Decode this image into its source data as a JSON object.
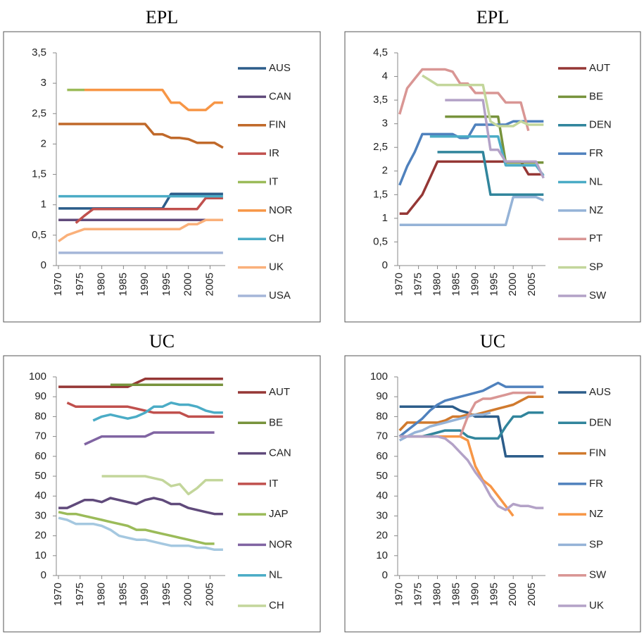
{
  "chart_data": [
    {
      "type": "line",
      "title": "EPL",
      "x": [
        1970,
        1972,
        1974,
        1976,
        1978,
        1980,
        1982,
        1984,
        1986,
        1988,
        1990,
        1992,
        1994,
        1996,
        1998,
        2000,
        2002,
        2004,
        2006,
        2008
      ],
      "xlim": [
        1969.5,
        2008.5
      ],
      "xticks": [
        1970,
        1975,
        1980,
        1985,
        1990,
        1995,
        2000,
        2005
      ],
      "ylim": [
        0,
        3.5
      ],
      "yticks": [
        0,
        {
          "value": 0.5,
          "label": "0,5"
        },
        1,
        {
          "value": 1.5,
          "label": "1,5"
        },
        2,
        {
          "value": 2.5,
          "label": "2,5"
        },
        3,
        {
          "value": 3.5,
          "label": "3,5"
        }
      ],
      "series": [
        {
          "name": "AUS",
          "color": "#2c5d8a",
          "values": [
            0.94,
            0.94,
            0.94,
            0.94,
            0.94,
            0.94,
            0.94,
            0.94,
            0.94,
            0.94,
            0.94,
            0.94,
            0.94,
            1.18,
            1.18,
            1.18,
            1.18,
            1.18,
            1.18,
            1.18
          ]
        },
        {
          "name": "CAN",
          "color": "#604a7b",
          "values": [
            0.75,
            0.75,
            0.75,
            0.75,
            0.75,
            0.75,
            0.75,
            0.75,
            0.75,
            0.75,
            0.75,
            0.75,
            0.75,
            0.75,
            0.75,
            0.75,
            0.75,
            0.75,
            0.75,
            0.75
          ]
        },
        {
          "name": "FIN",
          "color": "#c0692a",
          "values": [
            2.33,
            2.33,
            2.33,
            2.33,
            2.33,
            2.33,
            2.33,
            2.33,
            2.33,
            2.33,
            2.33,
            2.16,
            2.16,
            2.1,
            2.1,
            2.08,
            2.02,
            2.02,
            2.02,
            1.94
          ]
        },
        {
          "name": "IR",
          "color": "#c0504d",
          "values": [
            null,
            null,
            0.7,
            0.82,
            0.93,
            0.93,
            0.93,
            0.93,
            0.93,
            0.93,
            0.93,
            0.93,
            0.93,
            0.93,
            0.93,
            0.93,
            0.93,
            1.11,
            1.11,
            1.11
          ]
        },
        {
          "name": "IT",
          "color": "#9bbb59",
          "values": [
            null,
            2.89,
            2.89,
            2.89,
            null,
            null,
            null,
            null,
            null,
            null,
            null,
            null,
            null,
            null,
            null,
            null,
            null,
            null,
            null,
            null
          ]
        },
        {
          "name": "NOR",
          "color": "#f79646",
          "values": [
            null,
            null,
            null,
            2.89,
            2.89,
            2.89,
            2.89,
            2.89,
            2.89,
            2.89,
            2.89,
            2.89,
            2.89,
            2.68,
            2.68,
            2.56,
            2.56,
            2.56,
            2.68,
            2.68
          ]
        },
        {
          "name": "CH",
          "color": "#4bacc6",
          "values": [
            1.14,
            1.14,
            1.14,
            1.14,
            1.14,
            1.14,
            1.14,
            1.14,
            1.14,
            1.14,
            1.14,
            1.14,
            1.14,
            1.14,
            1.14,
            1.14,
            1.14,
            1.14,
            1.14,
            1.14
          ]
        },
        {
          "name": "UK",
          "color": "#fab07a",
          "values": [
            0.4,
            0.5,
            0.55,
            0.6,
            0.6,
            0.6,
            0.6,
            0.6,
            0.6,
            0.6,
            0.6,
            0.6,
            0.6,
            0.6,
            0.6,
            0.68,
            0.68,
            0.75,
            0.75,
            0.75
          ]
        },
        {
          "name": "USA",
          "color": "#a5b6d8",
          "values": [
            0.21,
            0.21,
            0.21,
            0.21,
            0.21,
            0.21,
            0.21,
            0.21,
            0.21,
            0.21,
            0.21,
            0.21,
            0.21,
            0.21,
            0.21,
            0.21,
            0.21,
            0.21,
            0.21,
            0.21
          ]
        }
      ]
    },
    {
      "type": "line",
      "title": "EPL",
      "x": [
        1970,
        1972,
        1974,
        1976,
        1978,
        1980,
        1982,
        1984,
        1986,
        1988,
        1990,
        1992,
        1994,
        1996,
        1998,
        2000,
        2002,
        2004,
        2006,
        2008
      ],
      "xlim": [
        1969.5,
        2008.5
      ],
      "xticks": [
        1970,
        1975,
        1980,
        1985,
        1990,
        1995,
        2000,
        2005
      ],
      "ylim": [
        0,
        4.5
      ],
      "yticks": [
        0,
        {
          "value": 0.5,
          "label": "0,5"
        },
        1,
        {
          "value": 1.5,
          "label": "1,5"
        },
        2,
        {
          "value": 2.5,
          "label": "2,5"
        },
        3,
        {
          "value": 3.5,
          "label": "3,5"
        },
        4,
        {
          "value": 4.5,
          "label": "4,5"
        }
      ],
      "series": [
        {
          "name": "AUT",
          "color": "#953735",
          "values": [
            1.1,
            1.1,
            1.3,
            1.5,
            1.85,
            2.2,
            2.2,
            2.2,
            2.2,
            2.2,
            2.2,
            2.2,
            2.2,
            2.2,
            2.2,
            2.2,
            2.2,
            1.93,
            1.93,
            1.93
          ]
        },
        {
          "name": "BE",
          "color": "#77933c",
          "values": [
            null,
            null,
            null,
            null,
            null,
            null,
            3.15,
            3.15,
            3.15,
            3.15,
            3.15,
            3.15,
            3.15,
            3.15,
            2.18,
            2.18,
            2.18,
            2.18,
            2.18,
            2.18
          ]
        },
        {
          "name": "DEN",
          "color": "#31859c",
          "values": [
            null,
            null,
            null,
            null,
            null,
            2.4,
            2.4,
            2.4,
            2.4,
            2.4,
            2.4,
            2.4,
            1.5,
            1.5,
            1.5,
            1.5,
            1.5,
            1.5,
            1.5,
            1.5
          ]
        },
        {
          "name": "FR",
          "color": "#4f81bd",
          "values": [
            1.7,
            2.1,
            2.4,
            2.78,
            2.78,
            2.78,
            2.78,
            2.78,
            2.7,
            2.7,
            2.98,
            2.98,
            2.98,
            2.98,
            2.98,
            3.05,
            3.05,
            3.05,
            3.05,
            3.05
          ]
        },
        {
          "name": "NL",
          "color": "#4bacc6",
          "values": [
            null,
            null,
            null,
            null,
            2.73,
            2.73,
            2.73,
            2.73,
            2.73,
            2.73,
            2.73,
            2.73,
            2.73,
            2.73,
            2.12,
            2.12,
            2.12,
            2.12,
            2.12,
            1.9
          ]
        },
        {
          "name": "NZ",
          "color": "#95b3d7",
          "values": [
            0.86,
            0.86,
            0.86,
            0.86,
            0.86,
            0.86,
            0.86,
            0.86,
            0.86,
            0.86,
            0.86,
            0.86,
            0.86,
            0.86,
            0.86,
            1.45,
            1.45,
            1.45,
            1.45,
            1.38
          ]
        },
        {
          "name": "PT",
          "color": "#d99694",
          "values": [
            3.2,
            3.75,
            3.95,
            4.15,
            4.15,
            4.15,
            4.15,
            4.1,
            3.85,
            3.85,
            3.65,
            3.65,
            3.65,
            3.65,
            3.45,
            3.45,
            3.45,
            2.85,
            null,
            null
          ]
        },
        {
          "name": "SP",
          "color": "#c3d69b",
          "values": [
            null,
            null,
            null,
            4.02,
            3.92,
            3.82,
            3.82,
            3.82,
            3.82,
            3.82,
            3.82,
            3.82,
            3.05,
            2.95,
            2.95,
            2.95,
            3.05,
            2.98,
            2.98,
            2.98
          ]
        },
        {
          "name": "SW",
          "color": "#b3a2c7",
          "values": [
            null,
            null,
            null,
            null,
            null,
            null,
            3.5,
            3.5,
            3.5,
            3.5,
            3.5,
            3.5,
            2.45,
            2.45,
            2.2,
            2.2,
            2.2,
            2.2,
            2.2,
            1.85
          ]
        }
      ]
    },
    {
      "type": "line",
      "title": "UC",
      "x": [
        1970,
        1972,
        1974,
        1976,
        1978,
        1980,
        1982,
        1984,
        1986,
        1988,
        1990,
        1992,
        1994,
        1996,
        1998,
        2000,
        2002,
        2004,
        2006,
        2008
      ],
      "xlim": [
        1969.5,
        2008.5
      ],
      "xticks": [
        1970,
        1975,
        1980,
        1985,
        1990,
        1995,
        2000,
        2005
      ],
      "ylim": [
        0,
        100
      ],
      "yticks": [
        0,
        10,
        20,
        30,
        40,
        50,
        60,
        70,
        80,
        90,
        100
      ],
      "series": [
        {
          "name": "AUT",
          "color": "#953735",
          "values": [
            95,
            95,
            95,
            95,
            95,
            95,
            95,
            95,
            95,
            97,
            99,
            99,
            99,
            99,
            99,
            99,
            99,
            99,
            99,
            99
          ]
        },
        {
          "name": "BE",
          "color": "#77933c",
          "values": [
            null,
            null,
            null,
            null,
            null,
            null,
            96,
            96,
            96,
            96,
            96,
            96,
            96,
            96,
            96,
            96,
            96,
            96,
            96,
            96
          ]
        },
        {
          "name": "CAN",
          "color": "#604a7b",
          "values": [
            34,
            34,
            36,
            38,
            38,
            37,
            39,
            38,
            37,
            36,
            38,
            39,
            38,
            36,
            36,
            34,
            33,
            32,
            31,
            31
          ]
        },
        {
          "name": "IT",
          "color": "#c0504d",
          "values": [
            null,
            87,
            85,
            85,
            85,
            85,
            85,
            85,
            85,
            84,
            83,
            82,
            82,
            82,
            82,
            80,
            80,
            80,
            80,
            80
          ]
        },
        {
          "name": "JAP",
          "color": "#9bbb59",
          "values": [
            32,
            31,
            31,
            30,
            29,
            28,
            27,
            26,
            25,
            23,
            23,
            22,
            21,
            20,
            19,
            18,
            17,
            16,
            16,
            null
          ]
        },
        {
          "name": "NOR",
          "color": "#8064a2",
          "values": [
            null,
            null,
            null,
            66,
            68,
            70,
            70,
            70,
            70,
            70,
            70,
            72,
            72,
            72,
            72,
            72,
            72,
            72,
            72,
            null
          ]
        },
        {
          "name": "NL",
          "color": "#4bacc6",
          "values": [
            null,
            null,
            null,
            null,
            78,
            80,
            81,
            80,
            79,
            80,
            82,
            85,
            85,
            87,
            86,
            86,
            85,
            83,
            82,
            82
          ]
        },
        {
          "name": "CH",
          "color": "#c3d69b",
          "values": [
            null,
            null,
            null,
            null,
            null,
            50,
            50,
            50,
            50,
            50,
            50,
            49,
            48,
            45,
            46,
            41,
            44,
            48,
            48,
            48
          ]
        },
        {
          "color": "#a5c8e0",
          "values": [
            29,
            28,
            26,
            26,
            26,
            25,
            23,
            20,
            19,
            18,
            18,
            17,
            16,
            15,
            15,
            15,
            14,
            14,
            13,
            13
          ]
        }
      ]
    },
    {
      "type": "line",
      "title": "UC",
      "x": [
        1970,
        1972,
        1974,
        1976,
        1978,
        1980,
        1982,
        1984,
        1986,
        1988,
        1990,
        1992,
        1994,
        1996,
        1998,
        2000,
        2002,
        2004,
        2006,
        2008
      ],
      "xlim": [
        1969.5,
        2008.5
      ],
      "xticks": [
        1970,
        1975,
        1980,
        1985,
        1990,
        1995,
        2000,
        2005
      ],
      "ylim": [
        0,
        100
      ],
      "yticks": [
        0,
        10,
        20,
        30,
        40,
        50,
        60,
        70,
        80,
        90,
        100
      ],
      "series": [
        {
          "name": "AUS",
          "color": "#2c5d8a",
          "values": [
            85,
            85,
            85,
            85,
            85,
            85,
            85,
            85,
            83,
            82,
            80,
            80,
            80,
            80,
            60,
            60,
            60,
            60,
            60,
            60
          ]
        },
        {
          "name": "DEN",
          "color": "#31859c",
          "values": [
            70,
            70,
            70,
            70,
            71,
            72,
            73,
            73,
            73,
            70,
            69,
            69,
            69,
            69,
            75,
            80,
            80,
            82,
            82,
            82
          ]
        },
        {
          "name": "FIN",
          "color": "#d07a2e",
          "values": [
            73,
            77,
            77,
            77,
            77,
            77,
            78,
            80,
            80,
            81,
            81,
            82,
            83,
            84,
            85,
            86,
            88,
            90,
            90,
            90
          ]
        },
        {
          "name": "FR",
          "color": "#4f81bd",
          "values": [
            70,
            73,
            76,
            79,
            83,
            86,
            88,
            89,
            90,
            91,
            92,
            93,
            95,
            97,
            95,
            95,
            95,
            95,
            95,
            95
          ]
        },
        {
          "name": "NZ",
          "color": "#f79646",
          "values": [
            70,
            70,
            70,
            70,
            70,
            70,
            70,
            70,
            70,
            68,
            55,
            48,
            45,
            40,
            35,
            30,
            null,
            null,
            null,
            null
          ]
        },
        {
          "name": "SP",
          "color": "#95b3d7",
          "values": [
            68,
            70,
            72,
            73,
            75,
            76,
            77,
            78,
            79,
            80,
            81,
            81,
            82,
            null,
            null,
            null,
            null,
            null,
            null,
            null
          ]
        },
        {
          "name": "SW",
          "color": "#d99694",
          "values": [
            null,
            null,
            null,
            null,
            null,
            null,
            null,
            null,
            70,
            80,
            87,
            89,
            89,
            90,
            91,
            92,
            92,
            92,
            92,
            null
          ]
        },
        {
          "name": "UK",
          "color": "#b3a2c7",
          "values": [
            70,
            70,
            70,
            70,
            70,
            70,
            69,
            66,
            62,
            58,
            52,
            47,
            40,
            35,
            33,
            36,
            35,
            35,
            34,
            34
          ]
        }
      ]
    }
  ]
}
